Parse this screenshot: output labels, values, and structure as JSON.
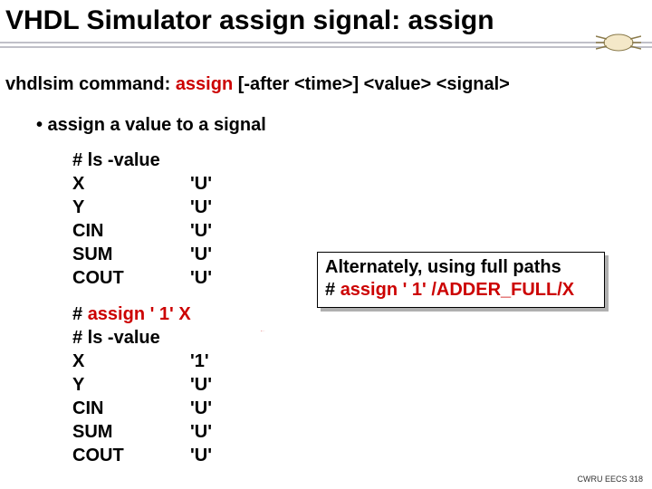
{
  "title": "VHDL Simulator assign signal: assign",
  "command": {
    "prefix": "vhdlsim command: ",
    "keyword": "assign",
    "args": " [-after <time>] <value> <signal>"
  },
  "bullet": "• assign a value to a signal",
  "terminal1": {
    "cmd": "# ls -value",
    "rows": [
      {
        "sig": "X",
        "val": "'U'"
      },
      {
        "sig": "Y",
        "val": "'U'"
      },
      {
        "sig": "CIN",
        "val": "'U'"
      },
      {
        "sig": "SUM",
        "val": "'U'"
      },
      {
        "sig": "COUT",
        "val": "'U'"
      }
    ]
  },
  "assign_cmd": {
    "hash": "# ",
    "red": "assign ' 1' X"
  },
  "terminal2": {
    "cmd": "# ls -value",
    "rows": [
      {
        "sig": "X",
        "val": "'1'"
      },
      {
        "sig": "Y",
        "val": "'U'"
      },
      {
        "sig": "CIN",
        "val": "'U'"
      },
      {
        "sig": "SUM",
        "val": "'U'"
      },
      {
        "sig": "COUT",
        "val": "'U'"
      }
    ]
  },
  "callout": {
    "line1": "Alternately, using full paths",
    "line2_hash": "# ",
    "line2_red": "assign ' 1' /ADDER_FULL/X"
  },
  "footer": "CWRU EECS 318",
  "colors": {
    "keyword": "#cc0000",
    "arrow": "#cc0000"
  }
}
